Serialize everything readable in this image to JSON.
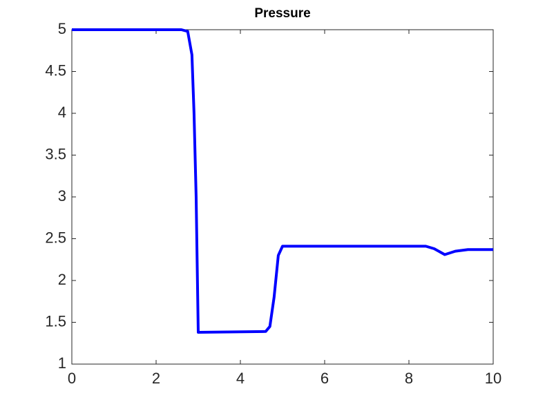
{
  "chart_data": {
    "type": "line",
    "title": "Pressure",
    "x": [
      0,
      2.6,
      2.75,
      2.85,
      2.9,
      2.95,
      3.0,
      4.6,
      4.7,
      4.8,
      4.9,
      5.0,
      8.4,
      8.6,
      8.85,
      9.1,
      9.4,
      10
    ],
    "values": [
      5,
      5,
      4.98,
      4.7,
      4.0,
      3.0,
      1.38,
      1.39,
      1.45,
      1.8,
      2.3,
      2.41,
      2.41,
      2.38,
      2.31,
      2.35,
      2.37,
      2.37
    ],
    "color": "#0000ff",
    "xlim": [
      0,
      10
    ],
    "xticks": [
      0,
      2,
      4,
      6,
      8,
      10
    ],
    "ylim": [
      1,
      5
    ],
    "yticks": [
      1,
      1.5,
      2,
      2.5,
      3,
      3.5,
      4,
      4.5,
      5
    ]
  }
}
